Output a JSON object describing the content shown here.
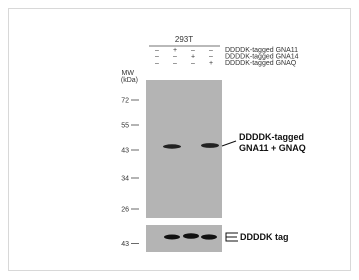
{
  "cell_line": "293T",
  "conditions": [
    {
      "signs": [
        "–",
        "+",
        "–",
        "–"
      ],
      "label": "DDDDK-tagged  GNA11"
    },
    {
      "signs": [
        "–",
        "–",
        "+",
        "–"
      ],
      "label": "DDDDK-tagged  GNA14"
    },
    {
      "signs": [
        "–",
        "–",
        "–",
        "+"
      ],
      "label": "DDDDK-tagged  GNAQ"
    }
  ],
  "mw_title": [
    "MW",
    "(kDa)"
  ],
  "markers": [
    "72",
    "55",
    "43",
    "34",
    "26"
  ],
  "lower_marker": "43",
  "main_annotation": [
    "DDDDK-tagged",
    "GNA11 + GNAQ"
  ],
  "lower_annotation": "DDDDK tag"
}
